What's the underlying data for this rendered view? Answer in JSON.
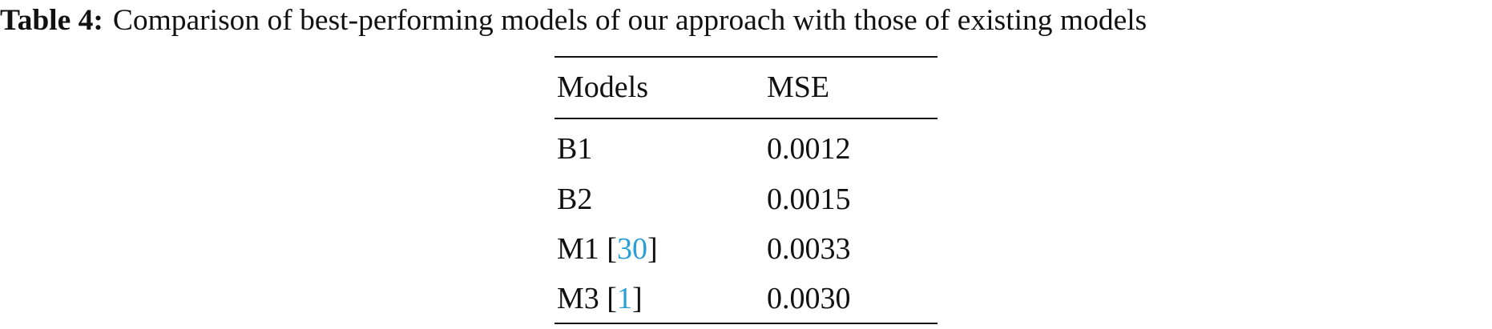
{
  "caption": {
    "label": "Table 4:",
    "text": "Comparison of best-performing models of our approach with those of existing models"
  },
  "table": {
    "header": [
      "Models",
      "MSE"
    ],
    "rows": [
      [
        [
          "B1"
        ],
        "0.0012"
      ],
      [
        [
          "B2"
        ],
        "0.0015"
      ],
      [
        [
          "M1 [",
          "30",
          "]"
        ],
        "0.0033"
      ],
      [
        [
          "M3 [",
          "1",
          "]"
        ],
        "0.0030"
      ]
    ]
  }
}
